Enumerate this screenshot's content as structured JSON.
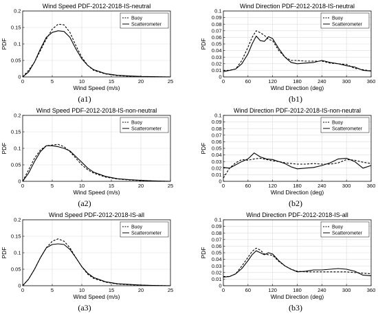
{
  "chart_data": [
    {
      "id": "a1",
      "caption": "(a1)",
      "type": "line",
      "title": "Wind Speed PDF-2012-2018-IS-neutral",
      "xlabel": "Wind Speed (m/s)",
      "ylabel": "PDF",
      "xlim": [
        0,
        25
      ],
      "ylim": [
        0,
        0.2
      ],
      "xticks": [
        0,
        5,
        10,
        15,
        20,
        25
      ],
      "xtick_labels": [
        "0",
        "5",
        "10",
        "15",
        "20",
        "25"
      ],
      "yticks": [
        0,
        0.05,
        0.1,
        0.15,
        0.2
      ],
      "ytick_labels": [
        "0",
        "0.05",
        "0.1",
        "0.15",
        "0.2"
      ],
      "grid": true,
      "legend_position": "top-right",
      "series": [
        {
          "name": "Buoy",
          "style": "dashed",
          "x": [
            0,
            1,
            2,
            3,
            4,
            5,
            6,
            7,
            8,
            9,
            10,
            11,
            12,
            14,
            16,
            18,
            20,
            22,
            25
          ],
          "values": [
            0.0,
            0.02,
            0.045,
            0.08,
            0.115,
            0.145,
            0.16,
            0.158,
            0.135,
            0.095,
            0.06,
            0.035,
            0.02,
            0.009,
            0.004,
            0.002,
            0.001,
            0.0005,
            0.0
          ]
        },
        {
          "name": "Scatterometer",
          "style": "solid",
          "x": [
            0,
            1,
            2,
            3,
            4,
            5,
            6,
            7,
            8,
            9,
            10,
            11,
            12,
            14,
            16,
            18,
            20,
            22,
            25
          ],
          "values": [
            0.0,
            0.015,
            0.045,
            0.085,
            0.12,
            0.135,
            0.14,
            0.138,
            0.12,
            0.085,
            0.055,
            0.035,
            0.022,
            0.01,
            0.005,
            0.003,
            0.0015,
            0.0008,
            0.0
          ]
        }
      ]
    },
    {
      "id": "b1",
      "caption": "(b1)",
      "type": "line",
      "title": "Wind Direction PDF-2012-2018-IS-neutral",
      "xlabel": "Wind Direction (deg)",
      "ylabel": "PDF",
      "xlim": [
        0,
        360
      ],
      "ylim": [
        0,
        0.1
      ],
      "xticks": [
        0,
        60,
        120,
        180,
        240,
        300,
        360
      ],
      "xtick_labels": [
        "0",
        "60",
        "120",
        "180",
        "240",
        "300",
        "360"
      ],
      "yticks": [
        0,
        0.01,
        0.02,
        0.03,
        0.04,
        0.05,
        0.06,
        0.07,
        0.08,
        0.09,
        0.1
      ],
      "ytick_labels": [
        "0",
        "0.01",
        "0.02",
        "0.03",
        "0.04",
        "0.05",
        "0.06",
        "0.07",
        "0.08",
        "0.09",
        "0.1"
      ],
      "grid": true,
      "legend_position": "top-right",
      "series": [
        {
          "name": "Buoy",
          "style": "dashed",
          "x": [
            0,
            15,
            30,
            45,
            60,
            70,
            80,
            90,
            100,
            110,
            120,
            135,
            150,
            165,
            180,
            200,
            220,
            240,
            260,
            280,
            300,
            320,
            340,
            360
          ],
          "values": [
            0.01,
            0.01,
            0.012,
            0.025,
            0.045,
            0.06,
            0.07,
            0.067,
            0.063,
            0.057,
            0.055,
            0.04,
            0.03,
            0.025,
            0.025,
            0.024,
            0.024,
            0.024,
            0.021,
            0.02,
            0.019,
            0.013,
            0.011,
            0.009
          ]
        },
        {
          "name": "Scatterometer",
          "style": "solid",
          "x": [
            0,
            15,
            30,
            45,
            60,
            70,
            80,
            90,
            100,
            110,
            120,
            135,
            150,
            165,
            180,
            200,
            220,
            240,
            260,
            280,
            300,
            320,
            340,
            360
          ],
          "values": [
            0.008,
            0.01,
            0.012,
            0.02,
            0.035,
            0.05,
            0.062,
            0.055,
            0.054,
            0.061,
            0.058,
            0.043,
            0.03,
            0.022,
            0.02,
            0.021,
            0.022,
            0.025,
            0.022,
            0.02,
            0.017,
            0.015,
            0.01,
            0.009
          ]
        }
      ]
    },
    {
      "id": "a2",
      "caption": "(a2)",
      "type": "line",
      "title": "Wind Speed PDF-2012-2018-IS-non-neutral",
      "xlabel": "Wind Speed (m/s)",
      "ylabel": "PDF",
      "xlim": [
        0,
        25
      ],
      "ylim": [
        0,
        0.2
      ],
      "xticks": [
        0,
        5,
        10,
        15,
        20,
        25
      ],
      "xtick_labels": [
        "0",
        "5",
        "10",
        "15",
        "20",
        "25"
      ],
      "yticks": [
        0,
        0.05,
        0.1,
        0.15,
        0.2
      ],
      "ytick_labels": [
        "0",
        "0.05",
        "0.1",
        "0.15",
        "0.2"
      ],
      "grid": true,
      "legend_position": "top-right",
      "series": [
        {
          "name": "Buoy",
          "style": "dashed",
          "x": [
            0,
            1,
            2,
            3,
            4,
            5,
            6,
            7,
            8,
            9,
            10,
            11,
            12,
            14,
            16,
            18,
            20,
            22,
            25
          ],
          "values": [
            0.0,
            0.035,
            0.07,
            0.095,
            0.108,
            0.11,
            0.112,
            0.105,
            0.09,
            0.07,
            0.05,
            0.035,
            0.025,
            0.013,
            0.007,
            0.004,
            0.002,
            0.001,
            0.0
          ]
        },
        {
          "name": "Scatterometer",
          "style": "solid",
          "x": [
            0,
            1,
            2,
            3,
            4,
            5,
            6,
            7,
            8,
            9,
            10,
            11,
            12,
            14,
            16,
            18,
            20,
            22,
            25
          ],
          "values": [
            0.0,
            0.025,
            0.06,
            0.09,
            0.108,
            0.108,
            0.105,
            0.1,
            0.092,
            0.075,
            0.058,
            0.04,
            0.028,
            0.015,
            0.008,
            0.005,
            0.003,
            0.0015,
            0.0
          ]
        }
      ]
    },
    {
      "id": "b2",
      "caption": "(b2)",
      "type": "line",
      "title": "Wind Direction PDF-2012-2018-IS-non-neutral",
      "xlabel": "Wind Direction (deg)",
      "ylabel": "PDF",
      "xlim": [
        0,
        360
      ],
      "ylim": [
        0,
        0.1
      ],
      "xticks": [
        0,
        60,
        120,
        180,
        240,
        300,
        360
      ],
      "xtick_labels": [
        "0",
        "60",
        "120",
        "180",
        "240",
        "300",
        "360"
      ],
      "yticks": [
        0,
        0.01,
        0.02,
        0.03,
        0.04,
        0.05,
        0.06,
        0.07,
        0.08,
        0.09,
        0.1
      ],
      "ytick_labels": [
        "0",
        "0.01",
        "0.02",
        "0.03",
        "0.04",
        "0.05",
        "0.06",
        "0.07",
        "0.08",
        "0.09",
        "0.1"
      ],
      "grid": true,
      "legend_position": "top-right",
      "series": [
        {
          "name": "Buoy",
          "style": "dashed",
          "x": [
            0,
            15,
            30,
            45,
            60,
            75,
            90,
            105,
            120,
            135,
            150,
            165,
            180,
            200,
            220,
            240,
            260,
            280,
            300,
            320,
            340,
            360
          ],
          "values": [
            0.005,
            0.02,
            0.028,
            0.033,
            0.032,
            0.034,
            0.035,
            0.033,
            0.031,
            0.03,
            0.028,
            0.027,
            0.026,
            0.026,
            0.027,
            0.026,
            0.026,
            0.028,
            0.033,
            0.032,
            0.029,
            0.027
          ]
        },
        {
          "name": "Scatterometer",
          "style": "solid",
          "x": [
            0,
            15,
            30,
            45,
            60,
            75,
            90,
            105,
            120,
            135,
            150,
            165,
            180,
            200,
            220,
            240,
            260,
            280,
            300,
            320,
            340,
            360
          ],
          "values": [
            0.021,
            0.02,
            0.025,
            0.03,
            0.034,
            0.043,
            0.037,
            0.034,
            0.033,
            0.03,
            0.027,
            0.022,
            0.019,
            0.02,
            0.021,
            0.024,
            0.028,
            0.034,
            0.035,
            0.03,
            0.02,
            0.024
          ]
        }
      ]
    },
    {
      "id": "a3",
      "caption": "(a3)",
      "type": "line",
      "title": "Wind Speed PDF-2012-2018-IS-all",
      "xlabel": "Wind Speed (m/s)",
      "ylabel": "PDF",
      "xlim": [
        0,
        25
      ],
      "ylim": [
        0,
        0.2
      ],
      "xticks": [
        0,
        5,
        10,
        15,
        20,
        25
      ],
      "xtick_labels": [
        "0",
        "5",
        "10",
        "15",
        "20",
        "25"
      ],
      "yticks": [
        0,
        0.05,
        0.1,
        0.15,
        0.2
      ],
      "ytick_labels": [
        "0",
        "0.05",
        "0.1",
        "0.15",
        "0.2"
      ],
      "grid": true,
      "legend_position": "top-right",
      "series": [
        {
          "name": "Buoy",
          "style": "dashed",
          "x": [
            0,
            1,
            2,
            3,
            4,
            5,
            6,
            7,
            8,
            9,
            10,
            11,
            12,
            14,
            16,
            18,
            20,
            22,
            25
          ],
          "values": [
            0.0,
            0.02,
            0.05,
            0.085,
            0.115,
            0.135,
            0.142,
            0.135,
            0.115,
            0.085,
            0.058,
            0.035,
            0.022,
            0.011,
            0.005,
            0.003,
            0.0015,
            0.0008,
            0.0
          ]
        },
        {
          "name": "Scatterometer",
          "style": "solid",
          "x": [
            0,
            1,
            2,
            3,
            4,
            5,
            6,
            7,
            8,
            9,
            10,
            11,
            12,
            14,
            16,
            18,
            20,
            22,
            25
          ],
          "values": [
            0.0,
            0.02,
            0.05,
            0.085,
            0.115,
            0.125,
            0.127,
            0.125,
            0.11,
            0.085,
            0.058,
            0.038,
            0.025,
            0.012,
            0.006,
            0.004,
            0.002,
            0.001,
            0.0
          ]
        }
      ]
    },
    {
      "id": "b3",
      "caption": "(b3)",
      "type": "line",
      "title": "Wind Direction PDF-2012-2018-IS-all",
      "xlabel": "Wind Direction (deg)",
      "ylabel": "PDF",
      "xlim": [
        0,
        360
      ],
      "ylim": [
        0,
        0.1
      ],
      "xticks": [
        0,
        60,
        120,
        180,
        240,
        300,
        360
      ],
      "xtick_labels": [
        "0",
        "60",
        "120",
        "180",
        "240",
        "300",
        "360"
      ],
      "yticks": [
        0,
        0.01,
        0.02,
        0.03,
        0.04,
        0.05,
        0.06,
        0.07,
        0.08,
        0.09,
        0.1
      ],
      "ytick_labels": [
        "0",
        "0.01",
        "0.02",
        "0.03",
        "0.04",
        "0.05",
        "0.06",
        "0.07",
        "0.08",
        "0.09",
        "0.1"
      ],
      "grid": true,
      "legend_position": "top-right",
      "series": [
        {
          "name": "Buoy",
          "style": "dashed",
          "x": [
            0,
            15,
            30,
            45,
            60,
            70,
            80,
            90,
            100,
            110,
            120,
            135,
            150,
            165,
            180,
            200,
            220,
            240,
            260,
            280,
            300,
            320,
            340,
            360
          ],
          "values": [
            0.014,
            0.014,
            0.018,
            0.03,
            0.043,
            0.052,
            0.057,
            0.054,
            0.048,
            0.047,
            0.046,
            0.037,
            0.03,
            0.025,
            0.022,
            0.021,
            0.021,
            0.021,
            0.021,
            0.021,
            0.021,
            0.02,
            0.019,
            0.018
          ]
        },
        {
          "name": "Scatterometer",
          "style": "solid",
          "x": [
            0,
            15,
            30,
            45,
            60,
            70,
            80,
            90,
            100,
            110,
            120,
            135,
            150,
            165,
            180,
            200,
            220,
            240,
            260,
            280,
            300,
            320,
            340,
            360
          ],
          "values": [
            0.013,
            0.014,
            0.018,
            0.026,
            0.038,
            0.047,
            0.053,
            0.05,
            0.047,
            0.05,
            0.048,
            0.038,
            0.03,
            0.025,
            0.021,
            0.022,
            0.024,
            0.024,
            0.025,
            0.026,
            0.025,
            0.022,
            0.016,
            0.015
          ]
        }
      ]
    }
  ],
  "colors": {
    "line": "#000000",
    "grid": "#dcdcdc",
    "axis": "#000000"
  }
}
